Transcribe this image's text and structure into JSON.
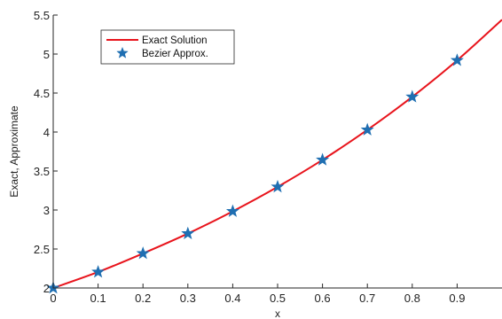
{
  "chart_data": {
    "type": "line",
    "xlabel": "x",
    "ylabel": "Exact, Approximate",
    "xlim": [
      0,
      1
    ],
    "ylim": [
      2,
      5.5
    ],
    "xticks": [
      0,
      0.1,
      0.2,
      0.3,
      0.4,
      0.5,
      0.6,
      0.7,
      0.8,
      0.9
    ],
    "xtick_labels": [
      "0",
      "0.1",
      "0.2",
      "0.3",
      "0.4",
      "0.5",
      "0.6",
      "0.7",
      "0.8",
      "0.9"
    ],
    "yticks": [
      2,
      2.5,
      3,
      3.5,
      4,
      4.5,
      5,
      5.5
    ],
    "ytick_labels": [
      "2",
      "2.5",
      "3",
      "3.5",
      "4",
      "4.5",
      "5",
      "5.5"
    ],
    "grid": false,
    "legend_position": "top-left",
    "series": [
      {
        "name": "Exact Solution",
        "style": "line",
        "color": "#e8141c",
        "x": [
          0,
          0.1,
          0.2,
          0.3,
          0.4,
          0.5,
          0.6,
          0.7,
          0.8,
          0.9,
          1.0
        ],
        "y": [
          2.0,
          2.205,
          2.443,
          2.698,
          2.983,
          3.297,
          3.643,
          4.028,
          4.451,
          4.919,
          5.44
        ]
      },
      {
        "name": "Bezier Approx.",
        "style": "star-markers",
        "color": "#1f6fb2",
        "x": [
          0,
          0.1,
          0.2,
          0.3,
          0.4,
          0.5,
          0.6,
          0.7,
          0.8,
          0.9
        ],
        "y": [
          2.0,
          2.205,
          2.443,
          2.698,
          2.983,
          3.297,
          3.643,
          4.028,
          4.451,
          4.919
        ]
      }
    ]
  }
}
